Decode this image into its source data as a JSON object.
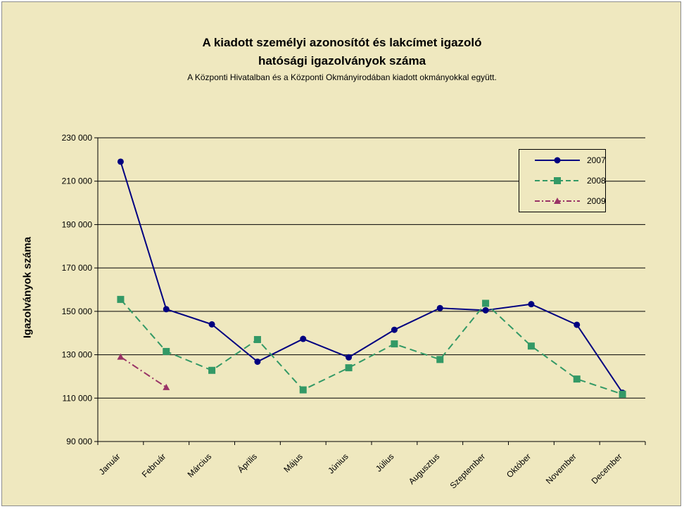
{
  "chart_data": {
    "type": "line",
    "title": "A kiadott személyi azonosítót és lakcímet igazoló",
    "title_line2": "hatósági igazolványok száma",
    "subtitle": "A Központi Hivatalban és a Központi Okmányirodában kiadott okmányokkal együtt.",
    "ylabel": "Igazolványok száma",
    "xlabel": "",
    "categories": [
      "Január",
      "Február",
      "Március",
      "Április",
      "Május",
      "Június",
      "Július",
      "Augusztus",
      "Szeptember",
      "Október",
      "November",
      "December"
    ],
    "y_ticks": [
      "90 000",
      "110 000",
      "130 000",
      "150 000",
      "170 000",
      "190 000",
      "210 000",
      "230 000"
    ],
    "ylim": [
      90000,
      230000
    ],
    "y_step": 20000,
    "grid": "horizontal",
    "legend_position": "top-right",
    "series": [
      {
        "name": "2007",
        "color": "#000080",
        "dash": "solid",
        "marker": "circle",
        "values": [
          219000,
          151000,
          144000,
          126800,
          137300,
          128800,
          141500,
          151500,
          150500,
          153300,
          143800,
          112500
        ]
      },
      {
        "name": "2008",
        "color": "#339966",
        "dash": "dashed",
        "marker": "square",
        "values": [
          155500,
          131500,
          122800,
          137000,
          113800,
          124000,
          135000,
          127800,
          153700,
          134000,
          118800,
          111800
        ]
      },
      {
        "name": "2009",
        "color": "#993366",
        "dash": "dash-dot",
        "marker": "triangle",
        "values": [
          129000,
          115000,
          null,
          null,
          null,
          null,
          null,
          null,
          null,
          null,
          null,
          null
        ]
      }
    ]
  }
}
